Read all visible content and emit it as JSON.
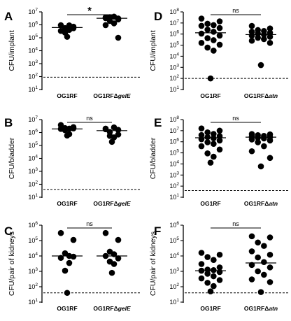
{
  "chart_data": [
    {
      "type": "scatter",
      "panel_label": "A",
      "ylabel": "CFU/implant",
      "yscale": "log",
      "ylim_exp": [
        1,
        7
      ],
      "categories": [
        "OG1RF",
        "OG1RFΔgelE"
      ],
      "cat_parts": [
        {
          "pre": "OG1RF",
          "it": ""
        },
        {
          "pre": "OG1RFΔ",
          "it": "gelE"
        }
      ],
      "series": [
        {
          "values": [
            940000.0,
            720000.0,
            560000.0,
            410000.0,
            340000.0,
            550000.0,
            250000.0,
            900000.0,
            120000.0
          ]
        },
        {
          "values": [
            3800000.0,
            3100000.0,
            3900000.0,
            4300000.0,
            3300000.0,
            2600000.0,
            2000000.0,
            1300000.0,
            950000.0,
            100000.0
          ]
        }
      ],
      "medians": [
        620000.0,
        3200000.0
      ],
      "detection_limit": 90,
      "significance": "*"
    },
    {
      "type": "scatter",
      "panel_label": "B",
      "ylabel": "CFU/bladder",
      "yscale": "log",
      "ylim_exp": [
        1,
        7
      ],
      "categories": [
        "OG1RF",
        "OG1RFΔgelE"
      ],
      "cat_parts": [
        {
          "pre": "OG1RF",
          "it": ""
        },
        {
          "pre": "OG1RFΔ",
          "it": "gelE"
        }
      ],
      "series": [
        {
          "values": [
            3800000.0,
            2600000.0,
            2200000.0,
            2000000.0,
            1900000.0,
            2100000.0,
            1500000.0,
            750000.0,
            580000.0
          ]
        },
        {
          "values": [
            2000000.0,
            1600000.0,
            1100000.0,
            2500000.0,
            1800000.0,
            700000.0,
            550000.0,
            420000.0,
            190000.0
          ]
        }
      ],
      "medians": [
        1900000.0,
        1400000.0
      ],
      "detection_limit": 40,
      "significance": "ns"
    },
    {
      "type": "scatter",
      "panel_label": "C",
      "ylabel": "CFU/pair of kidneys",
      "yscale": "log",
      "ylim_exp": [
        1,
        6
      ],
      "categories": [
        "OG1RF",
        "OG1RFΔgelE"
      ],
      "cat_parts": [
        {
          "pre": "OG1RF",
          "it": ""
        },
        {
          "pre": "OG1RFΔ",
          "it": "gelE"
        }
      ],
      "series": [
        {
          "values": [
            310000.0,
            110000.0,
            15000.0,
            10000.0,
            7500.0,
            9000.0,
            1100.0,
            3500.0,
            40
          ]
        },
        {
          "values": [
            310000.0,
            110000.0,
            19000.0,
            13000.0,
            10000.0,
            7000.0,
            4300.0,
            3000.0,
            800
          ]
        }
      ],
      "medians": [
        10000.0,
        10000.0
      ],
      "detection_limit": 40,
      "significance": "ns"
    },
    {
      "type": "scatter",
      "panel_label": "D",
      "ylabel": "CFU/implant",
      "yscale": "log",
      "ylim_exp": [
        1,
        8
      ],
      "categories": [
        "OG1RF",
        "OG1RFΔatn"
      ],
      "cat_parts": [
        {
          "pre": "OG1RF",
          "it": ""
        },
        {
          "pre": "OG1RFΔ",
          "it": "atn"
        }
      ],
      "series": [
        {
          "values": [
            25000000.0,
            14000000.0,
            8500000.0,
            6400000.0,
            5500000.0,
            3500000.0,
            2500000.0,
            1600000.0,
            1100000.0,
            720000.0,
            430000.0,
            280000.0,
            160000.0,
            110000.0,
            60000.0,
            32000.0,
            100
          ]
        },
        {
          "values": [
            5400000.0,
            3200000.0,
            2300000.0,
            1900000.0,
            1600000.0,
            1300000.0,
            1100000.0,
            900000.0,
            720000.0,
            570000.0,
            460000.0,
            350000.0,
            250000.0,
            160000.0,
            1600.0
          ]
        }
      ],
      "medians": [
        1300000.0,
        900000.0
      ],
      "detection_limit": 100,
      "significance": "ns"
    },
    {
      "type": "scatter",
      "panel_label": "E",
      "ylabel": "CFU/bladder",
      "yscale": "log",
      "ylim_exp": [
        1,
        8
      ],
      "categories": [
        "OG1RF",
        "OG1RFΔatn"
      ],
      "cat_parts": [
        {
          "pre": "OG1RF",
          "it": ""
        },
        {
          "pre": "OG1RFΔ",
          "it": "atn"
        }
      ],
      "series": [
        {
          "values": [
            16000000.0,
            10000000.0,
            7000000.0,
            5100000.0,
            4000000.0,
            3200000.0,
            2600000.0,
            2100000.0,
            1700000.0,
            1300000.0,
            900000.0,
            650000.0,
            400000.0,
            200000.0,
            90000.0,
            45000.0,
            13000.0
          ]
        },
        {
          "values": [
            5000000.0,
            4600000.0,
            3900000.0,
            3400000.0,
            3000000.0,
            2600000.0,
            2300000.0,
            2000000.0,
            1600000.0,
            1300000.0,
            900000.0,
            400000.0,
            140000.0,
            35000.0,
            6000.0
          ]
        }
      ],
      "medians": [
        2300000.0,
        2600000.0
      ],
      "detection_limit": 40,
      "significance": "ns"
    },
    {
      "type": "scatter",
      "panel_label": "F",
      "ylabel": "CFU/pair of kidneys",
      "yscale": "log",
      "ylim_exp": [
        1,
        6
      ],
      "categories": [
        "OG1RF",
        "OG1RFΔatn"
      ],
      "cat_parts": [
        {
          "pre": "OG1RF",
          "it": ""
        },
        {
          "pre": "OG1RFΔ",
          "it": "atn"
        }
      ],
      "series": [
        {
          "values": [
            16000.0,
            12000.0,
            8500.0,
            5500.0,
            3000.0,
            1800.0,
            1300.0,
            1200.0,
            1100.0,
            900,
            700,
            480,
            350,
            270,
            180,
            110,
            50
          ]
        },
        {
          "values": [
            190000.0,
            160000.0,
            75000.0,
            45000.0,
            20000.0,
            12000.0,
            8000.0,
            4000.0,
            2600.0,
            1800.0,
            1000.0,
            600,
            300,
            200,
            45
          ]
        }
      ],
      "medians": [
        1100.0,
        3500.0
      ],
      "detection_limit": 40,
      "significance": "ns"
    }
  ]
}
